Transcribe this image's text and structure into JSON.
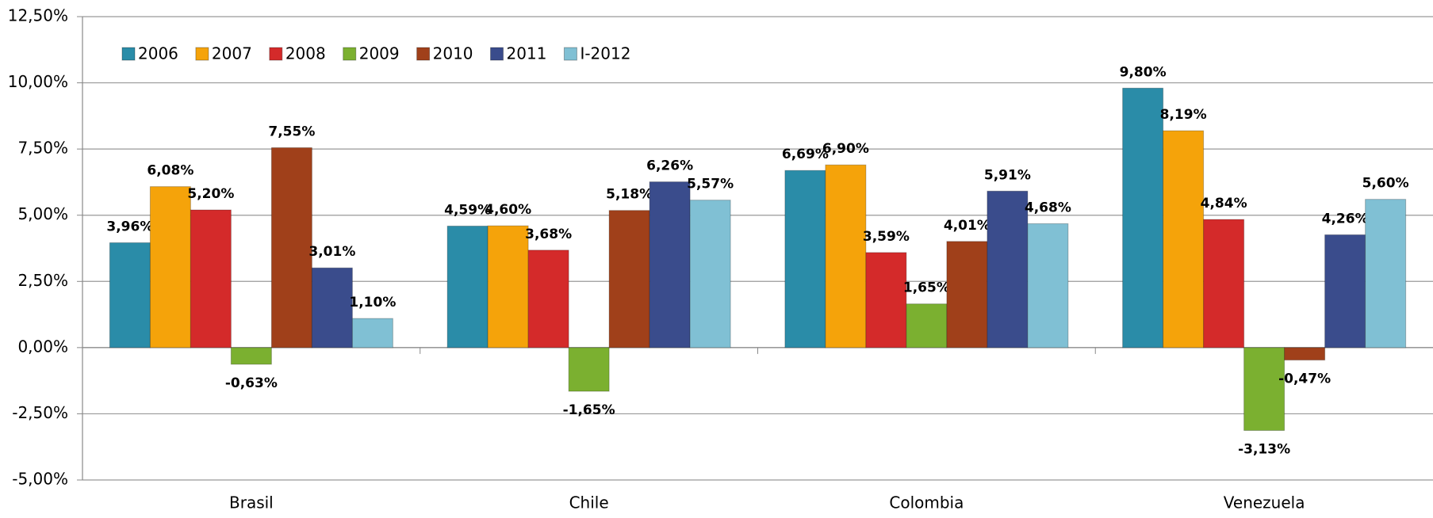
{
  "chart_data": {
    "type": "bar",
    "categories": [
      "Brasil",
      "Chile",
      "Colombia",
      "Venezuela"
    ],
    "series": [
      {
        "name": "2006",
        "color": "#2a8ca8",
        "values": [
          3.96,
          4.59,
          6.69,
          9.8
        ],
        "value_labels": [
          "3,96%",
          "4,59%",
          "6,69%",
          "9,80%"
        ]
      },
      {
        "name": "2007",
        "color": "#f5a30a",
        "values": [
          6.08,
          4.6,
          6.9,
          8.19
        ],
        "value_labels": [
          "6,08%",
          "4,60%",
          "6,90%",
          "8,19%"
        ]
      },
      {
        "name": "2008",
        "color": "#d42a2a",
        "values": [
          5.2,
          3.68,
          3.59,
          4.84
        ],
        "value_labels": [
          "5,20%",
          "3,68%",
          "3,59%",
          "4,84%"
        ]
      },
      {
        "name": "2009",
        "color": "#7bb030",
        "values": [
          -0.63,
          -1.65,
          1.65,
          -3.13
        ],
        "value_labels": [
          "-0,63%",
          "-1,65%",
          "1,65%",
          "-3,13%"
        ]
      },
      {
        "name": "2010",
        "color": "#a0401a",
        "values": [
          7.55,
          5.18,
          4.01,
          -0.47
        ],
        "value_labels": [
          "7,55%",
          "5,18%",
          "4,01%",
          "-0,47%"
        ]
      },
      {
        "name": "2011",
        "color": "#3a4c8c",
        "values": [
          3.01,
          6.26,
          5.91,
          4.26
        ],
        "value_labels": [
          "3,01%",
          "6,26%",
          "5,91%",
          "4,26%"
        ]
      },
      {
        "name": "I-2012",
        "color": "#80c0d4",
        "values": [
          1.1,
          5.57,
          4.68,
          5.6
        ],
        "value_labels": [
          "1,10%",
          "5,57%",
          "4,68%",
          "5,60%"
        ]
      }
    ],
    "ylim": [
      -5,
      12.5
    ],
    "yticks": [
      {
        "value": -5,
        "label": "-5,00%"
      },
      {
        "value": -2.5,
        "label": "-2,50%"
      },
      {
        "value": 0,
        "label": "0,00%"
      },
      {
        "value": 2.5,
        "label": "2,50%"
      },
      {
        "value": 5,
        "label": "5,00%"
      },
      {
        "value": 7.5,
        "label": "7,50%"
      },
      {
        "value": 10,
        "label": "10,00%"
      },
      {
        "value": 12.5,
        "label": "12,50%"
      }
    ],
    "grid": true,
    "legend": "top-left"
  }
}
